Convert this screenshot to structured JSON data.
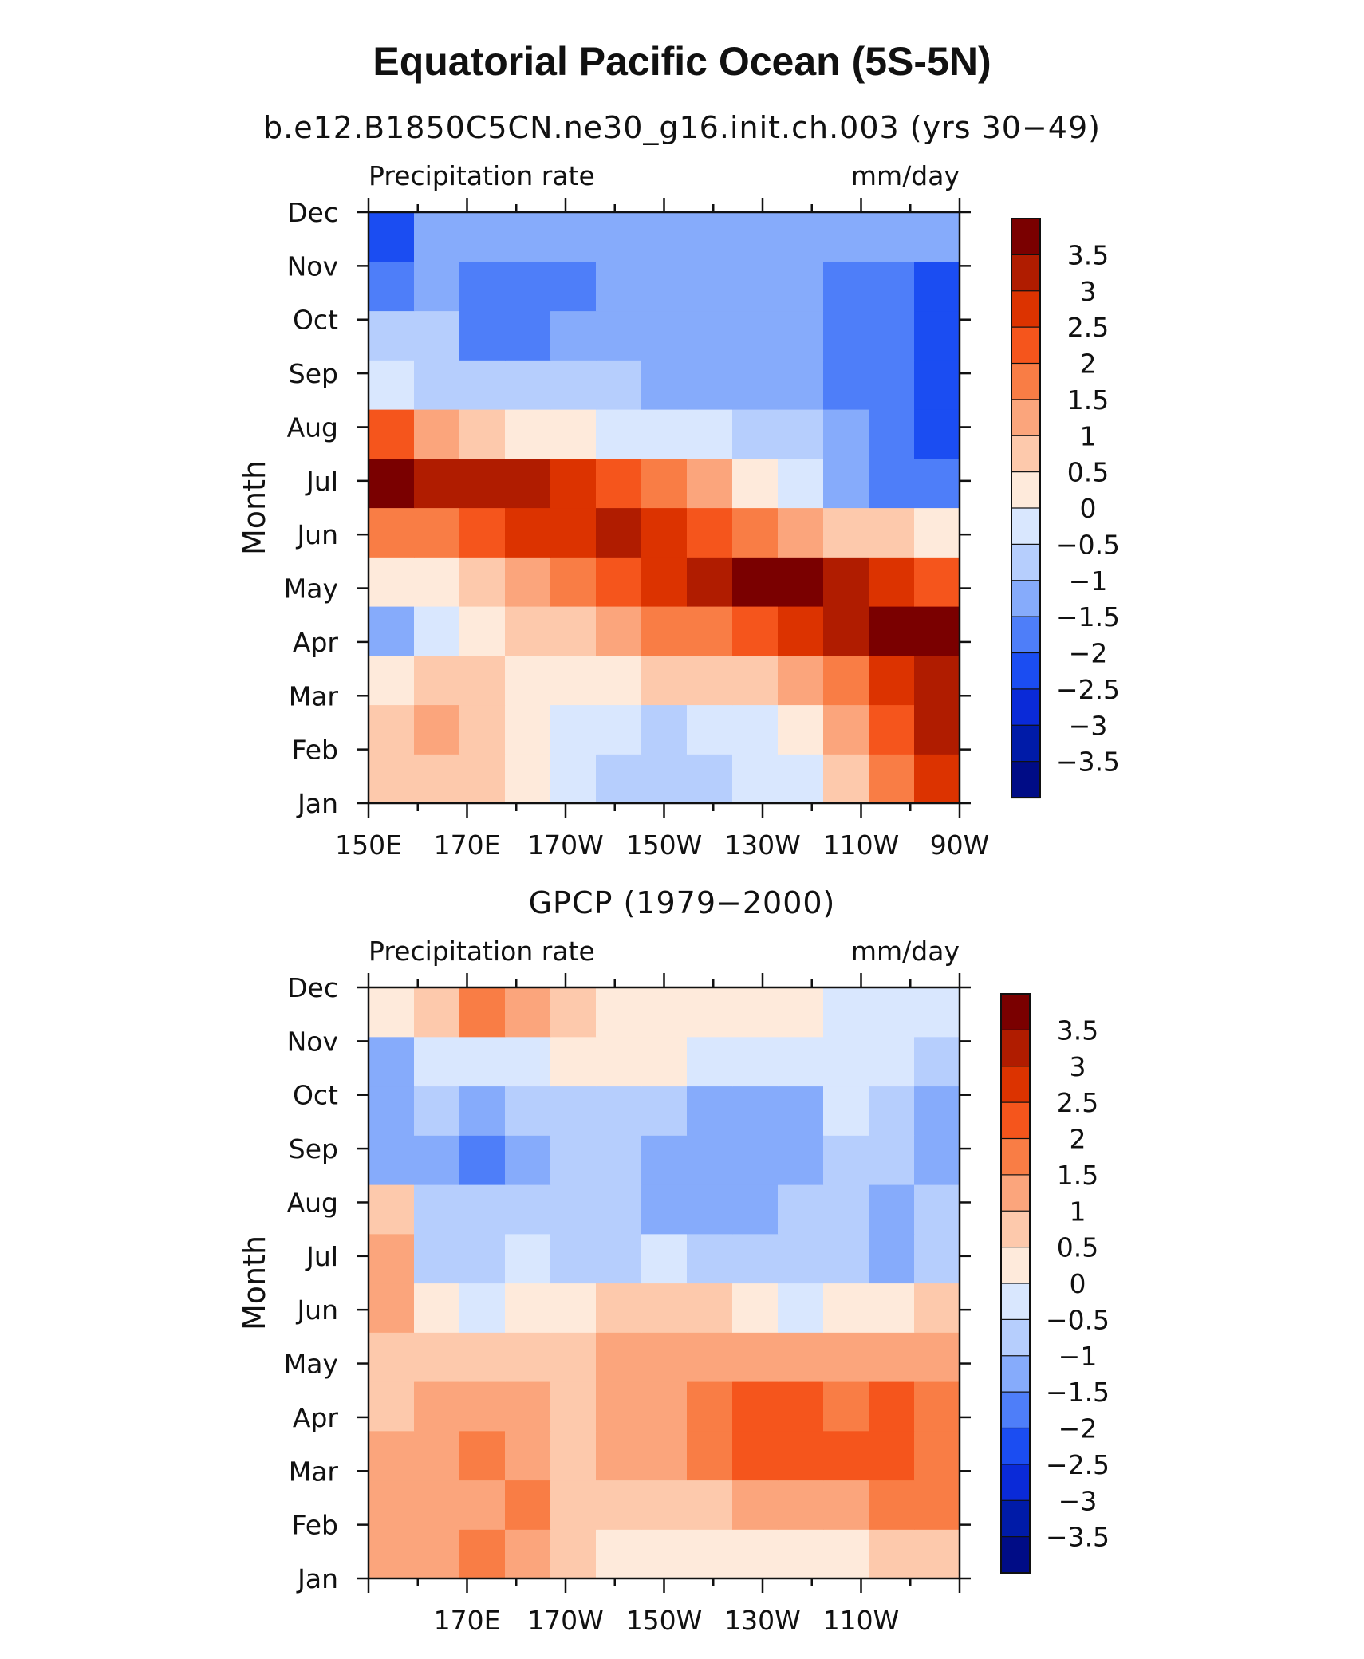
{
  "title": "Equatorial Pacific Ocean (5S-5N)",
  "chart_data": [
    {
      "type": "heatmap",
      "subtitle": "b.e12.B1850C5CN.ne30_g16.init.ch.003 (yrs 30−49)",
      "left_label": "Precipitation rate",
      "right_label": "mm/day",
      "ylabel": "Month",
      "xlabel": "",
      "x_ticks": [
        "150E",
        "170E",
        "170W",
        "150W",
        "130W",
        "110W",
        "90W"
      ],
      "y_ticks": [
        "Jan",
        "Feb",
        "Mar",
        "Apr",
        "May",
        "Jun",
        "Jul",
        "Aug",
        "Sep",
        "Oct",
        "Nov",
        "Dec"
      ],
      "x": [
        150,
        160,
        170,
        180,
        190,
        200,
        210,
        220,
        230,
        240,
        250,
        260,
        270
      ],
      "values": [
        [
          0.5,
          0.5,
          0.5,
          0.0,
          -0.5,
          -1.0,
          -1.0,
          -1.0,
          -0.5,
          -0.5,
          0.5,
          1.5,
          2.5
        ],
        [
          0.5,
          1.0,
          0.5,
          0.0,
          -0.5,
          -0.5,
          -1.0,
          -0.5,
          -0.5,
          0.0,
          1.0,
          2.0,
          3.0
        ],
        [
          0.0,
          0.5,
          0.5,
          0.0,
          0.0,
          0.0,
          0.5,
          0.5,
          0.5,
          1.0,
          1.5,
          2.5,
          3.0
        ],
        [
          -1.5,
          -0.5,
          0.0,
          0.5,
          0.5,
          1.0,
          1.5,
          1.5,
          2.0,
          2.5,
          3.0,
          3.5,
          4.0
        ],
        [
          0.0,
          0.0,
          0.5,
          1.0,
          1.5,
          2.0,
          2.5,
          3.0,
          3.5,
          3.5,
          3.0,
          2.5,
          2.0
        ],
        [
          1.5,
          1.5,
          2.0,
          2.5,
          2.5,
          3.0,
          2.5,
          2.0,
          1.5,
          1.0,
          0.5,
          0.5,
          0.0
        ],
        [
          3.5,
          3.0,
          3.0,
          3.0,
          2.5,
          2.0,
          1.5,
          1.0,
          0.0,
          -0.5,
          -1.5,
          -2.0,
          -2.0
        ],
        [
          2.0,
          1.0,
          0.5,
          0.0,
          0.0,
          -0.5,
          -0.5,
          -0.5,
          -1.0,
          -1.0,
          -1.5,
          -2.0,
          -2.5
        ],
        [
          -0.5,
          -1.0,
          -1.0,
          -1.0,
          -1.0,
          -1.0,
          -1.5,
          -1.5,
          -1.5,
          -1.5,
          -2.0,
          -2.0,
          -2.5
        ],
        [
          -1.0,
          -1.0,
          -2.0,
          -2.0,
          -1.5,
          -1.5,
          -1.5,
          -1.5,
          -1.5,
          -1.5,
          -2.0,
          -2.0,
          -2.5
        ],
        [
          -2.0,
          -1.5,
          -2.0,
          -2.0,
          -2.0,
          -1.5,
          -1.5,
          -1.5,
          -1.5,
          -1.5,
          -2.0,
          -2.0,
          -2.5
        ],
        [
          -2.5,
          -1.5,
          -1.5,
          -1.5,
          -1.5,
          -1.5,
          -1.5,
          -1.5,
          -1.5,
          -1.5,
          -1.5,
          -1.5,
          -1.5
        ]
      ]
    },
    {
      "type": "heatmap",
      "subtitle": "GPCP (1979−2000)",
      "left_label": "Precipitation rate",
      "right_label": "mm/day",
      "ylabel": "Month",
      "xlabel": "",
      "x_ticks": [
        "170E",
        "170W",
        "150W",
        "130W",
        "110W"
      ],
      "y_ticks": [
        "Jan",
        "Feb",
        "Mar",
        "Apr",
        "May",
        "Jun",
        "Jul",
        "Aug",
        "Sep",
        "Oct",
        "Nov",
        "Dec"
      ],
      "x": [
        150,
        160,
        170,
        180,
        190,
        200,
        210,
        220,
        230,
        240,
        250,
        260,
        270
      ],
      "values": [
        [
          1.0,
          1.0,
          1.5,
          1.0,
          0.5,
          0.0,
          0.0,
          0.0,
          0.0,
          0.0,
          0.0,
          0.5,
          0.5
        ],
        [
          1.0,
          1.0,
          1.0,
          1.5,
          0.5,
          0.5,
          0.5,
          0.5,
          1.0,
          1.0,
          1.0,
          1.5,
          1.5
        ],
        [
          1.0,
          1.0,
          1.5,
          1.0,
          0.5,
          1.0,
          1.0,
          1.5,
          2.0,
          2.0,
          2.0,
          2.0,
          1.5
        ],
        [
          0.5,
          1.0,
          1.0,
          1.0,
          0.5,
          1.0,
          1.0,
          1.5,
          2.0,
          2.0,
          1.5,
          2.0,
          1.5
        ],
        [
          0.5,
          0.5,
          0.5,
          0.5,
          0.5,
          1.0,
          1.0,
          1.0,
          1.0,
          1.0,
          1.0,
          1.0,
          1.0
        ],
        [
          1.0,
          0.0,
          -0.5,
          0.0,
          0.0,
          0.5,
          0.5,
          0.5,
          0.0,
          -0.5,
          0.0,
          0.0,
          0.5
        ],
        [
          1.0,
          -1.0,
          -1.0,
          -0.5,
          -1.0,
          -1.0,
          -0.5,
          -1.0,
          -1.0,
          -1.0,
          -1.0,
          -1.5,
          -1.0
        ],
        [
          0.5,
          -1.0,
          -1.0,
          -1.0,
          -1.0,
          -1.0,
          -1.5,
          -1.5,
          -1.5,
          -1.0,
          -1.0,
          -1.5,
          -1.0
        ],
        [
          -1.5,
          -1.5,
          -2.0,
          -1.5,
          -1.0,
          -1.0,
          -1.5,
          -1.5,
          -1.5,
          -1.5,
          -1.0,
          -1.0,
          -1.5
        ],
        [
          -1.5,
          -1.0,
          -1.5,
          -1.0,
          -1.0,
          -1.0,
          -1.0,
          -1.5,
          -1.5,
          -1.5,
          -0.5,
          -1.0,
          -1.5
        ],
        [
          -1.5,
          -0.5,
          -0.5,
          -0.5,
          0.0,
          0.0,
          0.0,
          -0.5,
          -0.5,
          -0.5,
          -0.5,
          -0.5,
          -1.0
        ],
        [
          0.0,
          0.5,
          1.5,
          1.0,
          0.5,
          0.0,
          0.0,
          0.0,
          0.0,
          0.0,
          -0.5,
          -0.5,
          -0.5
        ]
      ]
    }
  ],
  "colorbar": {
    "levels": [
      -3.5,
      -3,
      -2.5,
      -2,
      -1.5,
      -1,
      -0.5,
      0,
      0.5,
      1,
      1.5,
      2,
      2.5,
      3,
      3.5
    ],
    "labels": [
      "3.5",
      "3",
      "2.5",
      "2",
      "1.5",
      "1",
      "0.5",
      "0",
      "−0.5",
      "−1",
      "−1.5",
      "−2",
      "−2.5",
      "−3",
      "−3.5"
    ],
    "colors": [
      "#7a0000",
      "#b01c00",
      "#dc3300",
      "#f5551c",
      "#f97d45",
      "#fba57c",
      "#fdc9ac",
      "#feeadb",
      "#d9e7fe",
      "#b6cefd",
      "#86abfb",
      "#4e7ef9",
      "#1b4df2",
      "#0a2ad8",
      "#001ba8",
      "#000c86"
    ]
  }
}
